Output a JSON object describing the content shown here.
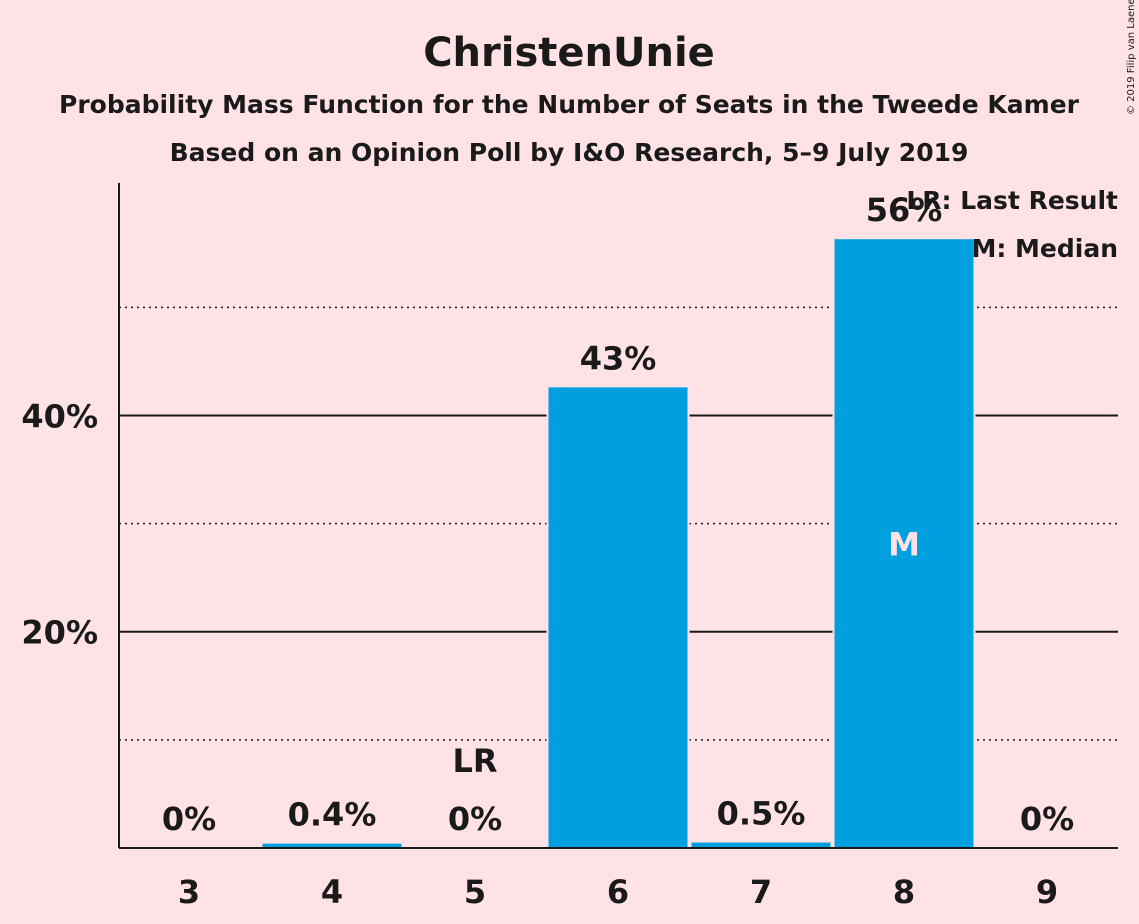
{
  "chart_data": {
    "type": "bar",
    "title": "ChristenUnie",
    "subtitle": "Probability Mass Function for the Number of Seats in the Tweede Kamer",
    "subtitle2": "Based on an Opinion Poll by I&O Research, 5–9 July 2019",
    "copyright": "© 2019 Filip van Laenen",
    "categories": [
      "3",
      "4",
      "5",
      "6",
      "7",
      "8",
      "9"
    ],
    "values": [
      0,
      0.4,
      0,
      42.6,
      0.5,
      56.3,
      0
    ],
    "value_labels": [
      "0%",
      "0.4%",
      "0%",
      "43%",
      "0.5%",
      "56%",
      "0%"
    ],
    "ylim": [
      0,
      61.5
    ],
    "yticks_major": [
      {
        "value": 20,
        "label": "20%"
      },
      {
        "value": 40,
        "label": "40%"
      }
    ],
    "yticks_minor": [
      10,
      30,
      50
    ],
    "last_result": {
      "category": "5",
      "label": "LR"
    },
    "median": {
      "category": "8",
      "label": "M"
    },
    "legend": [
      "LR: Last Result",
      "M: Median"
    ],
    "bar_color": "#009fdf",
    "background": "#ffe2e5"
  }
}
